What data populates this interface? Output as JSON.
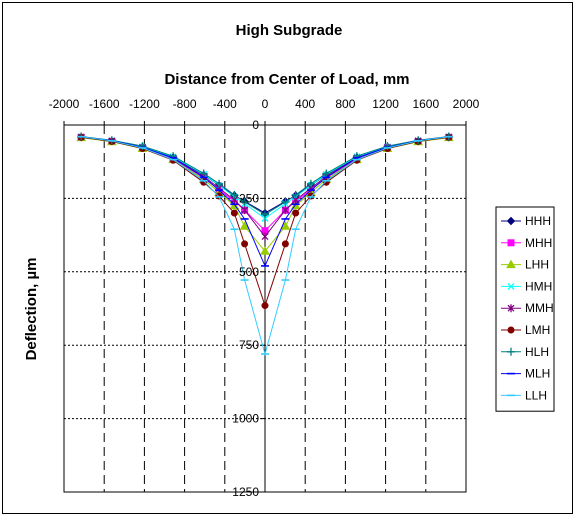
{
  "chart_data": {
    "type": "line",
    "title": "High Subgrade",
    "xlabel": "Distance from Center of Load, mm",
    "ylabel": "Deflection, µm",
    "xlim": [
      -2000,
      2000
    ],
    "ylim": [
      0,
      1250
    ],
    "y_inverted": true,
    "x_axis_position": "top",
    "x_ticks": [
      -2000,
      -1600,
      -1200,
      -800,
      -400,
      0,
      400,
      800,
      1200,
      1600,
      2000
    ],
    "x_tick_labels": [
      "-2000",
      "-1600",
      "-1200",
      "-800",
      "-400",
      "0",
      "400",
      "800",
      "1200",
      "1600",
      "2000"
    ],
    "y_ticks": [
      0,
      250,
      500,
      750,
      1000,
      1250
    ],
    "y_tick_labels": [
      "0",
      "250",
      "500",
      "750",
      "1000",
      "1250"
    ],
    "grid": "dashed",
    "legend_position": "right",
    "x": [
      -1829,
      -1524,
      -1219,
      -914,
      -610,
      -457,
      -305,
      -203,
      0,
      203,
      305,
      457,
      610,
      914,
      1219,
      1524,
      1829
    ],
    "series": [
      {
        "name": "HHH",
        "color": "#000080",
        "marker": "diamond",
        "values": [
          42,
          55,
          75,
          110,
          170,
          205,
          240,
          260,
          300,
          260,
          240,
          205,
          170,
          110,
          75,
          55,
          42
        ]
      },
      {
        "name": "MHH",
        "color": "#ff00ff",
        "marker": "square",
        "values": [
          42,
          56,
          78,
          115,
          180,
          220,
          260,
          290,
          360,
          290,
          260,
          220,
          180,
          115,
          78,
          56,
          42
        ]
      },
      {
        "name": "LHH",
        "color": "#99cc00",
        "marker": "triangle",
        "values": [
          43,
          57,
          80,
          118,
          185,
          230,
          275,
          345,
          430,
          345,
          275,
          230,
          185,
          118,
          80,
          57,
          43
        ]
      },
      {
        "name": "HMH",
        "color": "#00ffff",
        "marker": "x",
        "values": [
          40,
          53,
          74,
          108,
          168,
          205,
          245,
          268,
          318,
          268,
          245,
          205,
          168,
          108,
          74,
          53,
          40
        ]
      },
      {
        "name": "MMH",
        "color": "#800080",
        "marker": "star",
        "values": [
          41,
          54,
          76,
          112,
          175,
          215,
          255,
          290,
          380,
          290,
          255,
          215,
          175,
          112,
          76,
          54,
          41
        ]
      },
      {
        "name": "LMH",
        "color": "#800000",
        "marker": "circle",
        "values": [
          42,
          56,
          80,
          120,
          195,
          242,
          300,
          405,
          615,
          405,
          300,
          242,
          195,
          120,
          80,
          56,
          42
        ]
      },
      {
        "name": "HLH",
        "color": "#008080",
        "marker": "plus",
        "values": [
          39,
          52,
          72,
          106,
          165,
          200,
          238,
          262,
          305,
          262,
          238,
          200,
          165,
          106,
          72,
          52,
          39
        ]
      },
      {
        "name": "MLH",
        "color": "#0000ff",
        "marker": "dash",
        "values": [
          40,
          53,
          76,
          112,
          178,
          222,
          270,
          320,
          480,
          320,
          270,
          222,
          178,
          112,
          76,
          53,
          40
        ]
      },
      {
        "name": "LLH",
        "color": "#33ccff",
        "marker": "dash",
        "values": [
          40,
          54,
          78,
          118,
          190,
          245,
          355,
          528,
          780,
          528,
          355,
          245,
          190,
          118,
          78,
          54,
          40
        ]
      }
    ]
  }
}
